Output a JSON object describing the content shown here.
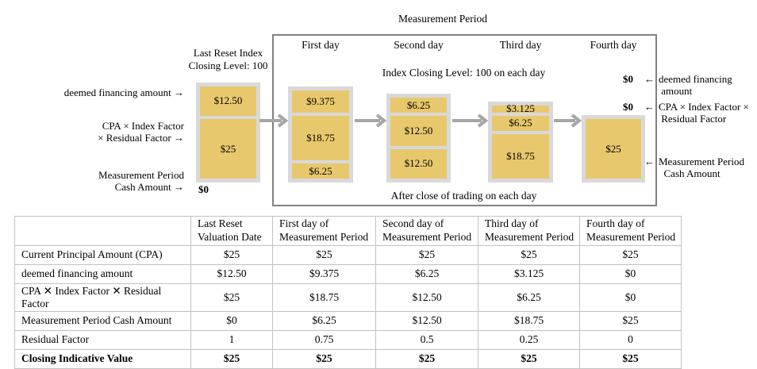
{
  "diagram": {
    "title": "Measurement Period",
    "index_note": "Index Closing Level: 100 on each day",
    "after_note": "After close of trading on each day",
    "last_reset_label": "Last Reset Index\nClosing Level: 100",
    "left_labels": {
      "financing": "deemed financing amount →",
      "cpa": "CPA × Index Factor\n× Residual Factor →",
      "cash": "Measurement Period\nCash Amount →",
      "zero": "$0"
    },
    "right_labels": {
      "zero_financing": "$0",
      "zero_cpa": "$0",
      "arrow": "←",
      "financing": "deemed financing\n amount",
      "cpa": "CPA × Index Factor ×\n Residual Factor",
      "cash": "Measurement Period\n  Cash Amount"
    },
    "columns": [
      {
        "name": "last-reset",
        "day_label": "",
        "segments": [
          {
            "label": "$12.50",
            "value": 12.5
          },
          {
            "label": "$25",
            "value": 25
          }
        ]
      },
      {
        "name": "first-day",
        "day_label": "First day",
        "segments": [
          {
            "label": "$9.375",
            "value": 9.375
          },
          {
            "label": "$18.75",
            "value": 18.75
          },
          {
            "label": "$6.25",
            "value": 6.25
          }
        ]
      },
      {
        "name": "second-day",
        "day_label": "Second day",
        "segments": [
          {
            "label": "$6.25",
            "value": 6.25
          },
          {
            "label": "$12.50",
            "value": 12.5
          },
          {
            "label": "$12.50",
            "value": 12.5
          }
        ]
      },
      {
        "name": "third-day",
        "day_label": "Third day",
        "segments": [
          {
            "label": "$3.125",
            "value": 3.125
          },
          {
            "label": "$6.25",
            "value": 6.25
          },
          {
            "label": "$18.75",
            "value": 18.75
          }
        ]
      },
      {
        "name": "fourth-day",
        "day_label": "Fourth day",
        "segments": [
          {
            "label": "$25",
            "value": 25
          }
        ]
      }
    ],
    "colors": {
      "box_fill": "#E8C86C",
      "stack_bg": "#D9D9D9",
      "arrow": "#A6A6A6",
      "border": "#808080"
    }
  },
  "table": {
    "headers": [
      "",
      "Last Reset\nValuation Date",
      "First day of\nMeasurement Period",
      "Second day of\nMeasurement Period",
      "Third day of\nMeasurement Period",
      "Fourth day of\nMeasurement Period"
    ],
    "rows": [
      {
        "label": "Current Principal Amount (CPA)",
        "values": [
          "$25",
          "$25",
          "$25",
          "$25",
          "$25"
        ],
        "bold": false
      },
      {
        "label": "deemed financing amount",
        "values": [
          "$12.50",
          "$9.375",
          "$6.25",
          "$3.125",
          "$0"
        ],
        "bold": false
      },
      {
        "label": "CPA ✕ Index Factor ✕ Residual Factor",
        "values": [
          "$25",
          "$18.75",
          "$12.50",
          "$6.25",
          "$0"
        ],
        "bold": false
      },
      {
        "label": "Measurement Period Cash Amount",
        "values": [
          "$0",
          "$6.25",
          "$12.50",
          "$18.75",
          "$25"
        ],
        "bold": false
      },
      {
        "label": "Residual Factor",
        "values": [
          "1",
          "0.75",
          "0.5",
          "0.25",
          "0"
        ],
        "bold": false
      },
      {
        "label": "Closing Indicative Value",
        "values": [
          "$25",
          "$25",
          "$25",
          "$25",
          "$25"
        ],
        "bold": true
      }
    ]
  }
}
